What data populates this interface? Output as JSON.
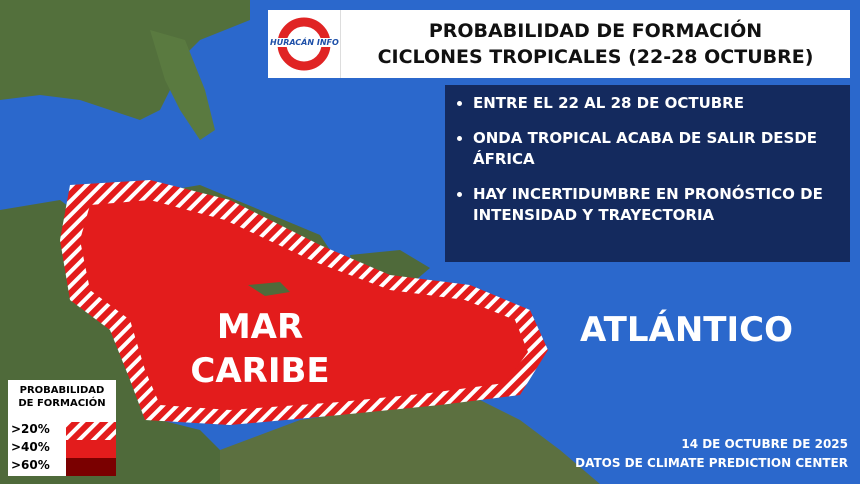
{
  "header": {
    "logo_text": "HURACÁN INFO",
    "title_line1": "PROBABILIDAD DE FORMACIÓN",
    "title_line2": "CICLONES TROPICALES (22-28 OCTUBRE)"
  },
  "info": {
    "bullets": [
      "ENTRE EL 22 AL 28 DE OCTUBRE",
      "ONDA TROPICAL ACABA DE SALIR DESDE ÁFRICA",
      "HAY INCERTIDUMBRE EN PRONÓSTICO DE INTENSIDAD Y TRAYECTORIA"
    ]
  },
  "map_labels": {
    "sea": "MAR CARIBE",
    "ocean": "ATLÁNTICO"
  },
  "legend": {
    "title_line1": "PROBABILIDAD",
    "title_line2": "DE FORMACIÓN",
    "levels": [
      {
        "label": ">20%",
        "color": "#e31c1c",
        "pattern": "hatched"
      },
      {
        "label": ">40%",
        "color": "#e31c1c"
      },
      {
        "label": ">60%",
        "color": "#7a0000"
      }
    ]
  },
  "credits": {
    "date": "14 DE OCTUBRE DE 2025",
    "source": "DATOS DE CLIMATE PREDICTION CENTER"
  },
  "colors": {
    "ocean": "#2b68cc",
    "land": "#4f6a3a",
    "area_red": "#e31c1c",
    "info_bg": "#142a5e"
  }
}
